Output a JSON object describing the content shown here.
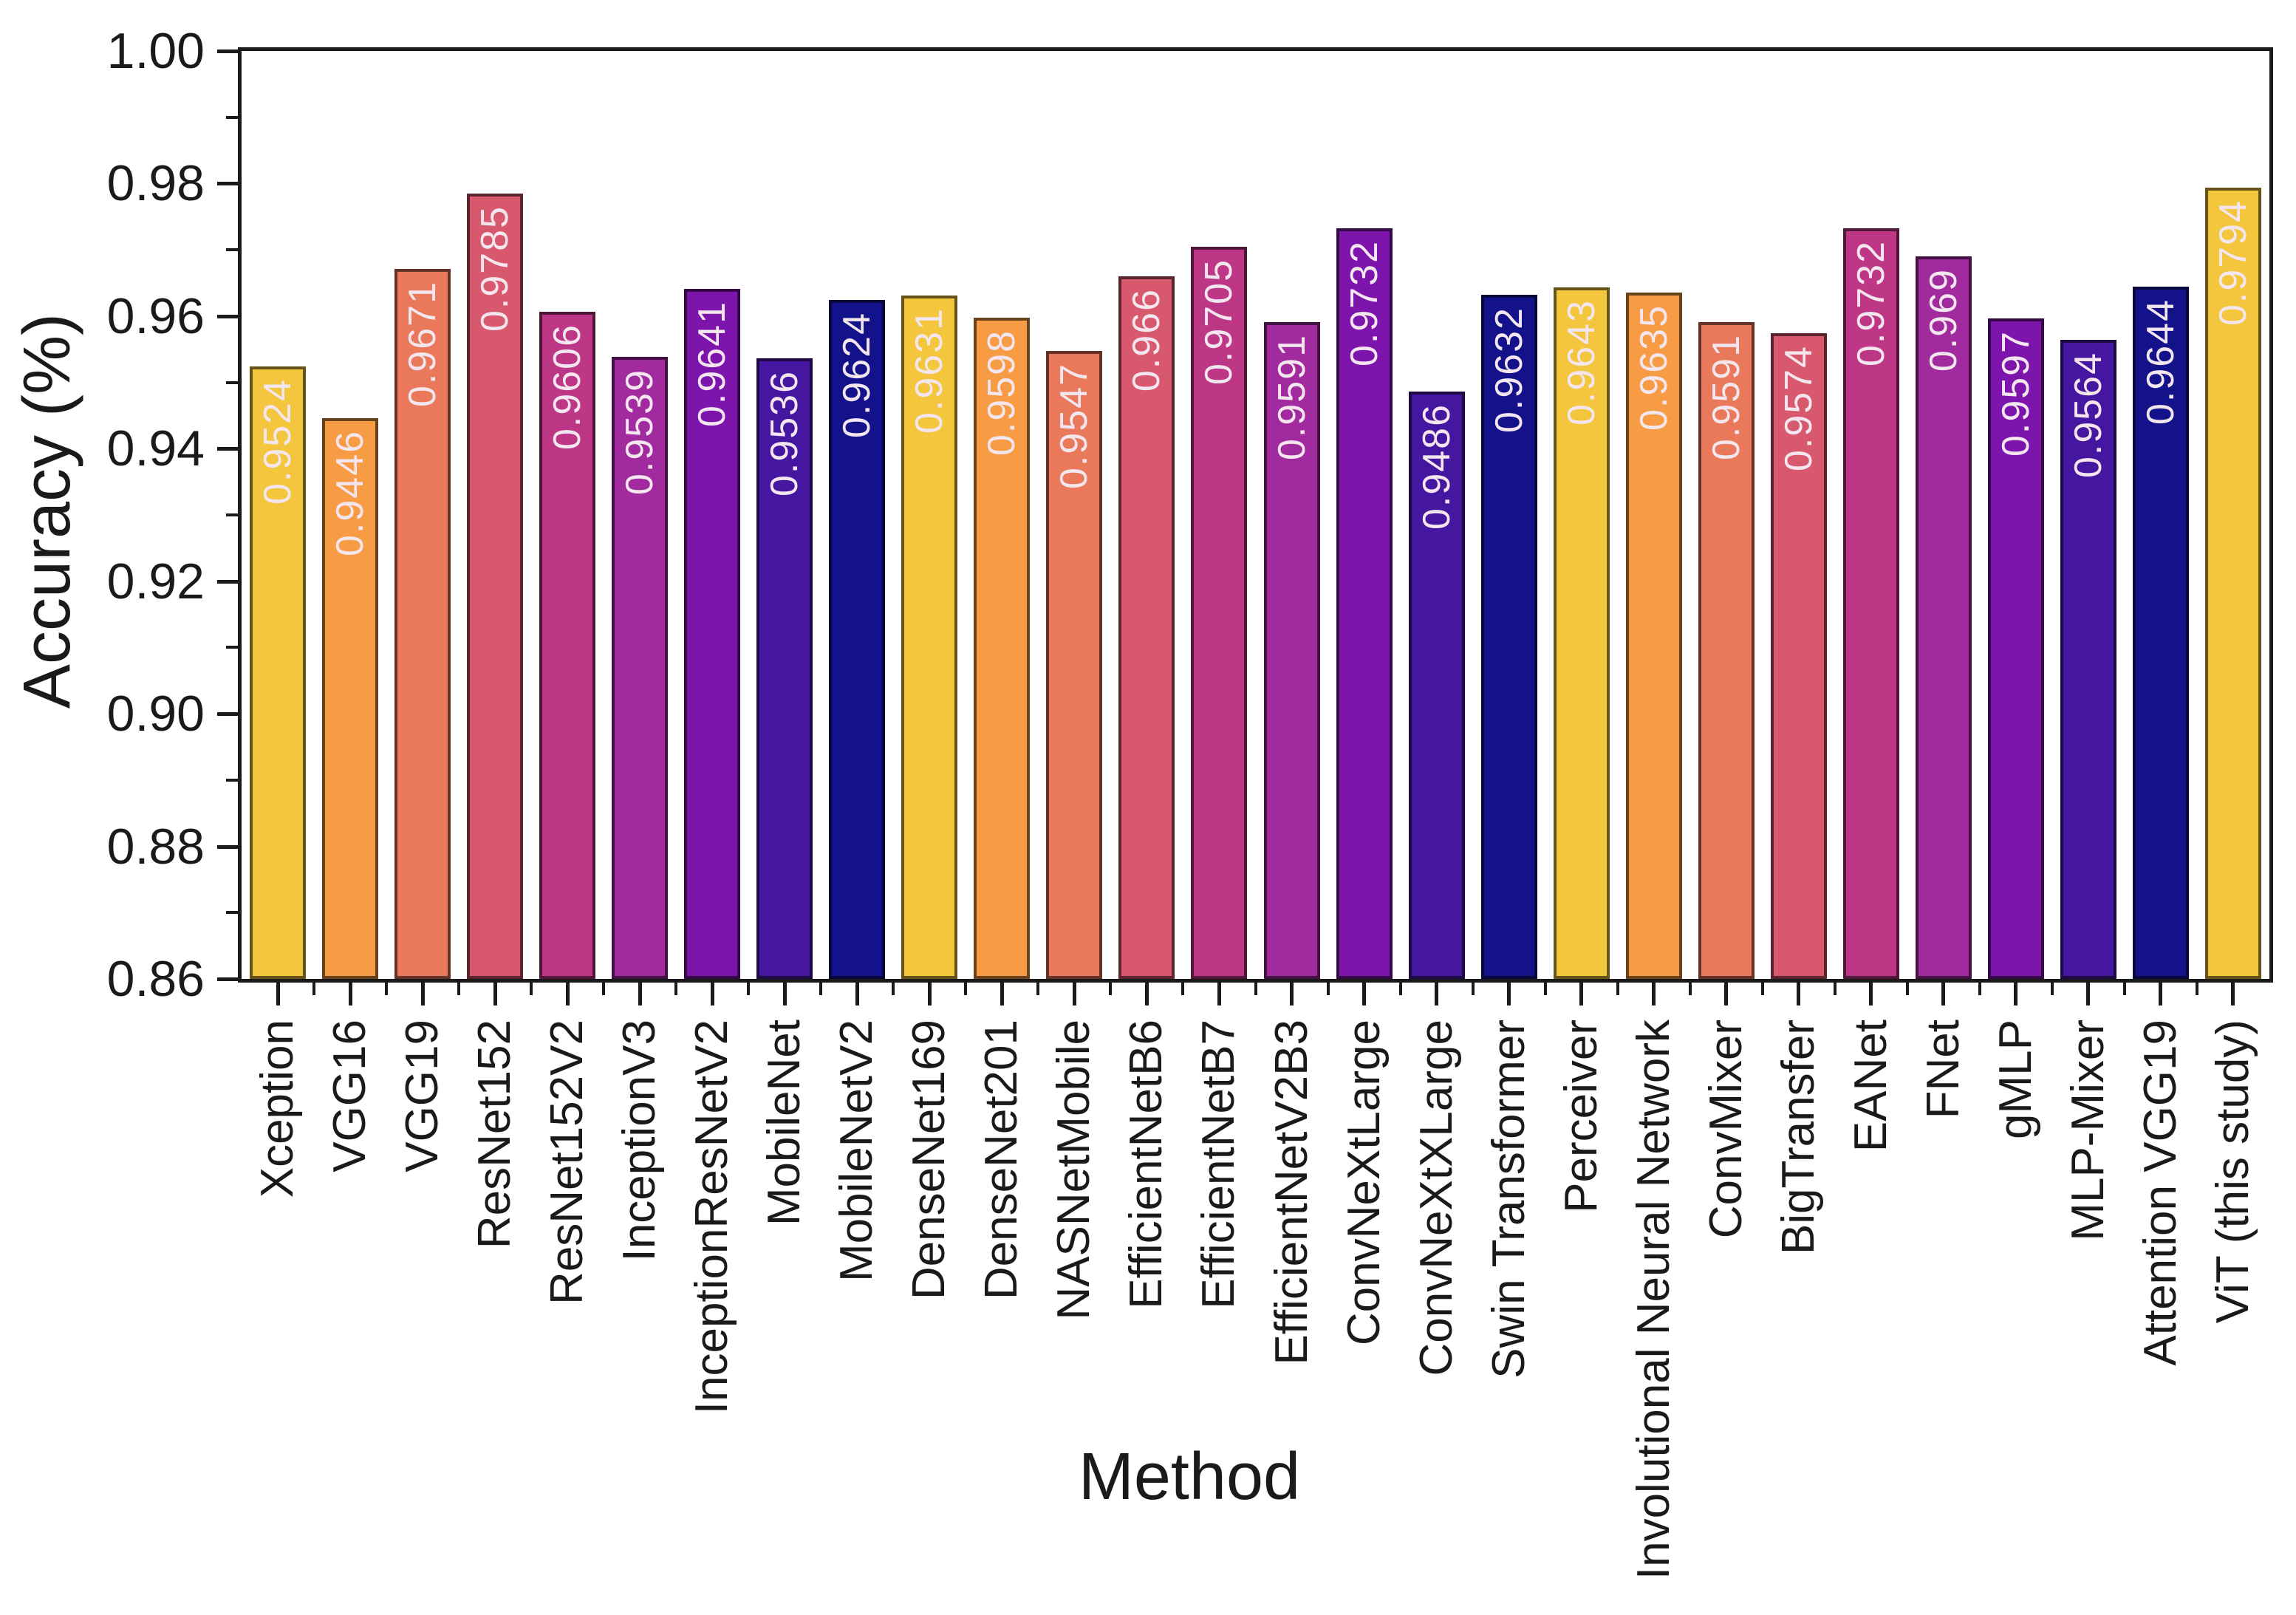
{
  "figure": {
    "background": "#ffffff",
    "axis_color": "#1a1a1a"
  },
  "chart_data": {
    "type": "bar",
    "title": "",
    "xlabel": "Method",
    "ylabel": "Accuracy (%)",
    "ylim": [
      0.86,
      1.0
    ],
    "grid": false,
    "legend_position": "none",
    "yticks": {
      "major_step": 0.02,
      "minor_step": 0.01,
      "labels": [
        "0.86",
        "0.88",
        "0.90",
        "0.92",
        "0.94",
        "0.96",
        "0.98",
        "1.00"
      ]
    },
    "categories": [
      "Xception",
      "VGG16",
      "VGG19",
      "ResNet152",
      "ResNet152V2",
      "InceptionV3",
      "InceptionResNetV2",
      "MobileNet",
      "MobileNetV2",
      "DenseNet169",
      "DenseNet201",
      "NASNetMobile",
      "EfficientNetB6",
      "EfficientNetB7",
      "EfficientNetV2B3",
      "ConvNeXtLarge",
      "ConvNeXtXLarge",
      "Swin Transformer",
      "Perceiver",
      "Involutional Neural Network",
      "ConvMixer",
      "BigTransfer",
      "EANet",
      "FNet",
      "gMLP",
      "MLP-Mixer",
      "Attention VGG19",
      "ViT (this study)"
    ],
    "values": [
      0.9524,
      0.9446,
      0.9671,
      0.9785,
      0.9606,
      0.9539,
      0.9641,
      0.9536,
      0.9624,
      0.9631,
      0.9598,
      0.9547,
      0.966,
      0.9705,
      0.9591,
      0.9732,
      0.9486,
      0.9632,
      0.9643,
      0.9635,
      0.9591,
      0.9574,
      0.9732,
      0.969,
      0.9597,
      0.9564,
      0.9644,
      0.9794
    ],
    "value_labels": [
      "0.9524",
      "0.9446",
      "0.9671",
      "0.9785",
      "0.9606",
      "0.9539",
      "0.9641",
      "0.9536",
      "0.9624",
      "0.9631",
      "0.9598",
      "0.9547",
      "0.966",
      "0.9705",
      "0.9591",
      "0.9732",
      "0.9486",
      "0.9632",
      "0.9643",
      "0.9635",
      "0.9591",
      "0.9574",
      "0.9732",
      "0.969",
      "0.9597",
      "0.9564",
      "0.9644",
      "0.9794"
    ],
    "palette_cycle": [
      "#f3c63d",
      "#f79b44",
      "#e9795a",
      "#d8596e",
      "#bd3786",
      "#a02a9e",
      "#7d14ab",
      "#4517a0",
      "#13128a"
    ],
    "value_label_color": "#f3e6ef"
  }
}
